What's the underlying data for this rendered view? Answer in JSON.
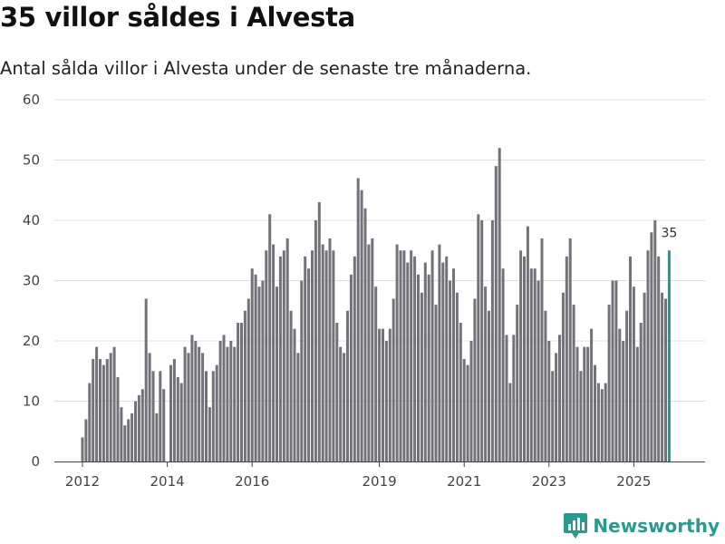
{
  "title": "35 villor såldes i Alvesta",
  "subtitle": "Antal sålda villor i Alvesta under de senaste tre månaderna.",
  "brand": "Newsworthy",
  "colors": {
    "bar": "#737278",
    "highlight": "#1f9a8f",
    "grid": "#e0e0e0",
    "axis": "#444444"
  },
  "chart_data": {
    "type": "bar",
    "ylim": [
      0,
      60
    ],
    "yticks": [
      0,
      10,
      20,
      30,
      40,
      50,
      60
    ],
    "xticks": [
      {
        "label": "2012",
        "index": 0
      },
      {
        "label": "2014",
        "index": 24
      },
      {
        "label": "2016",
        "index": 48
      },
      {
        "label": "2019",
        "index": 84
      },
      {
        "label": "2021",
        "index": 108
      },
      {
        "label": "2023",
        "index": 132
      },
      {
        "label": "2025",
        "index": 156
      }
    ],
    "start": "2011-12",
    "values": [
      4,
      7,
      13,
      17,
      19,
      17,
      16,
      17,
      18,
      19,
      14,
      9,
      6,
      7,
      8,
      10,
      11,
      12,
      27,
      18,
      15,
      8,
      15,
      12,
      0,
      16,
      17,
      14,
      13,
      19,
      18,
      21,
      20,
      19,
      18,
      15,
      9,
      15,
      16,
      20,
      21,
      19,
      20,
      19,
      23,
      23,
      25,
      27,
      32,
      31,
      29,
      30,
      35,
      41,
      36,
      29,
      34,
      35,
      37,
      25,
      22,
      18,
      30,
      34,
      32,
      35,
      40,
      43,
      36,
      35,
      37,
      35,
      23,
      19,
      18,
      25,
      31,
      34,
      47,
      45,
      42,
      36,
      37,
      29,
      22,
      22,
      20,
      22,
      27,
      36,
      35,
      35,
      33,
      35,
      34,
      31,
      28,
      33,
      31,
      35,
      26,
      36,
      33,
      34,
      30,
      32,
      28,
      23,
      17,
      16,
      20,
      27,
      41,
      40,
      29,
      25,
      40,
      49,
      52,
      32,
      21,
      13,
      21,
      26,
      35,
      34,
      39,
      32,
      32,
      30,
      37,
      25,
      20,
      15,
      18,
      21,
      28,
      34,
      37,
      26,
      19,
      15,
      19,
      19,
      22,
      16,
      13,
      12,
      13,
      26,
      30,
      30,
      22,
      20,
      25,
      34,
      29,
      19,
      23,
      28,
      35,
      38,
      40,
      34,
      28,
      27,
      35
    ],
    "highlight_label": "35"
  }
}
